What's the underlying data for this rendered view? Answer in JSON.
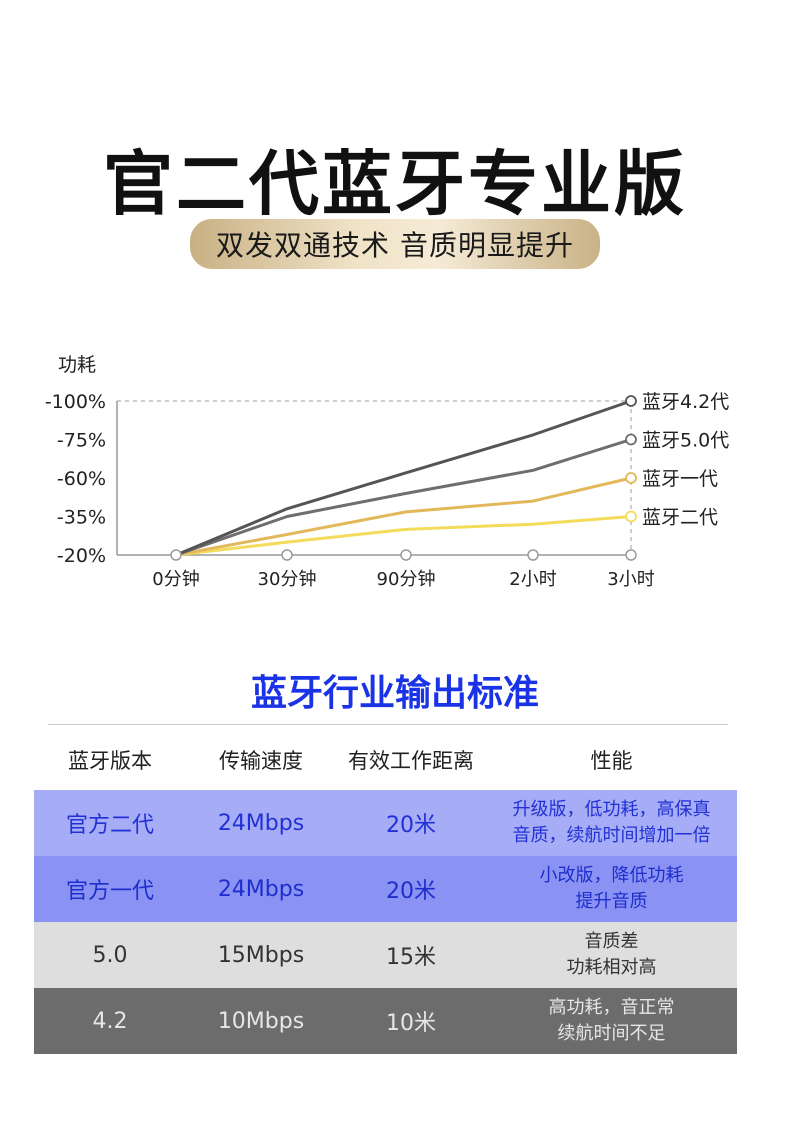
{
  "header": {
    "title": "官二代蓝牙专业版",
    "subtitle": "双发双通技术 音质明显提升"
  },
  "chart_data": {
    "type": "line",
    "ylabel": "功耗",
    "categories": [
      "0分钟",
      "30分钟",
      "90分钟",
      "2小时",
      "3小时"
    ],
    "yticks": [
      "-100%",
      "-75%",
      "-60%",
      "-35%",
      "-20%"
    ],
    "grid": "dashed border only",
    "series": [
      {
        "name": "蓝牙4.2代",
        "color": "#555555",
        "values": [
          -20,
          -40,
          -62,
          -78,
          -100
        ]
      },
      {
        "name": "蓝牙5.0代",
        "color": "#6e6e6e",
        "values": [
          -20,
          -35,
          -50,
          -63,
          -75
        ]
      },
      {
        "name": "蓝牙一代",
        "color": "#e3b85a",
        "values": [
          -20,
          -28,
          -38,
          -45,
          -60
        ]
      },
      {
        "name": "蓝牙二代",
        "color": "#f2dc5a",
        "values": [
          -20,
          -25,
          -30,
          -32,
          -35
        ]
      }
    ]
  },
  "comparison": {
    "title": "蓝牙行业输出标准",
    "headers": [
      "蓝牙版本",
      "传输速度",
      "有效工作距离",
      "性能"
    ],
    "rows": [
      {
        "version": "官方二代",
        "speed": "24Mbps",
        "distance": "20米",
        "perf1": "升级版，低功耗，高保真",
        "perf2": "音质，续航时间增加一倍"
      },
      {
        "version": "官方一代",
        "speed": "24Mbps",
        "distance": "20米",
        "perf1": "小改版，降低功耗",
        "perf2": "提升音质"
      },
      {
        "version": "5.0",
        "speed": "15Mbps",
        "distance": "15米",
        "perf1": "音质差",
        "perf2": "功耗相对高"
      },
      {
        "version": "4.2",
        "speed": "10Mbps",
        "distance": "10米",
        "perf1": "高功耗，音正常",
        "perf2": "续航时间不足"
      }
    ]
  }
}
